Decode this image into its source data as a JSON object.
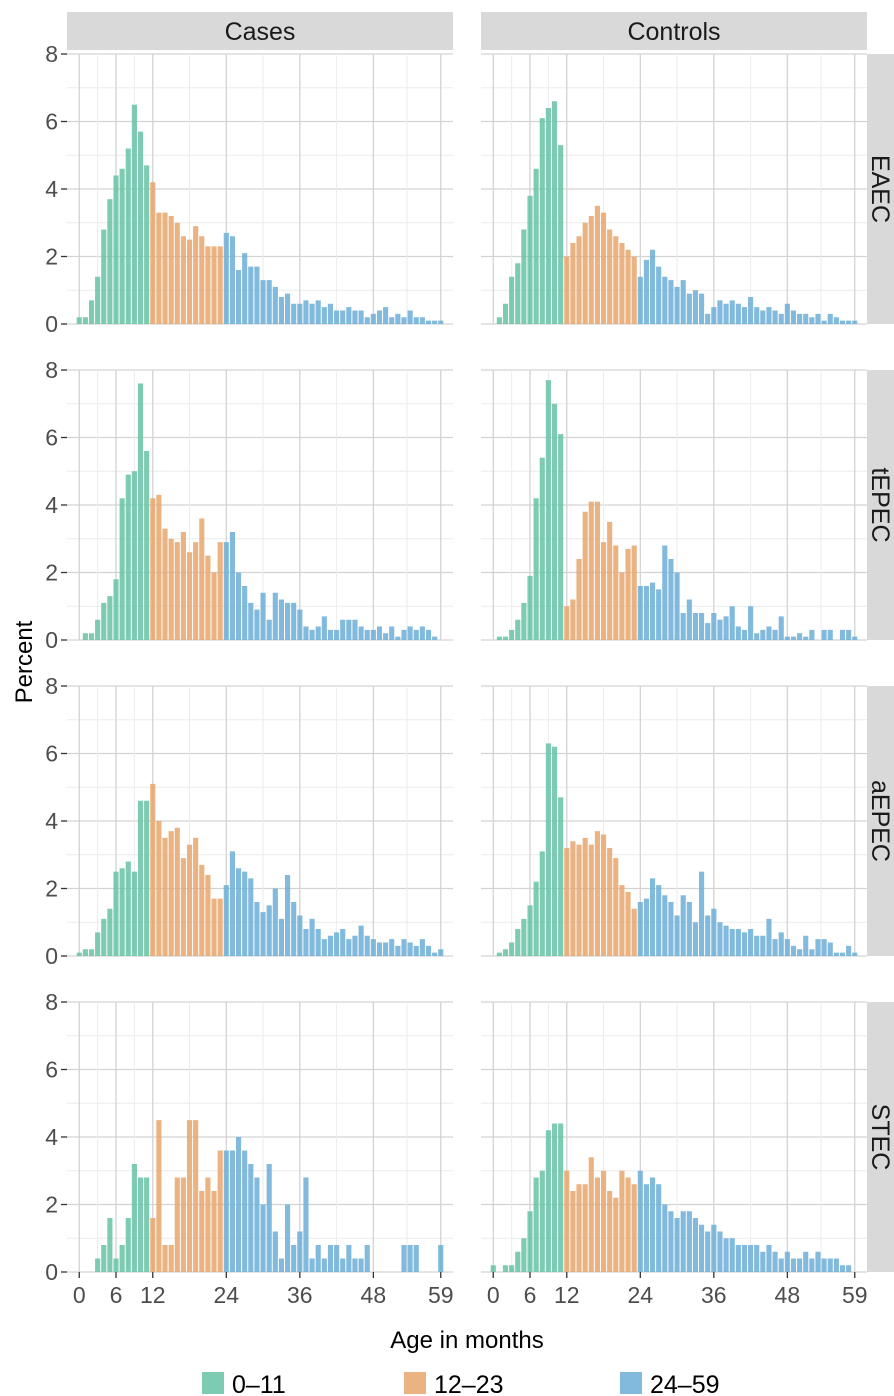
{
  "chart_data": {
    "type": "bar",
    "xlabel": "Age in months",
    "ylabel": "Percent",
    "xlim": [
      -2,
      61
    ],
    "ylim": [
      0,
      8
    ],
    "x_ticks": [
      0,
      6,
      12,
      24,
      36,
      48,
      59
    ],
    "y_ticks": [
      0,
      2,
      4,
      6,
      8
    ],
    "columns": [
      "Cases",
      "Controls"
    ],
    "rows": [
      "EAEC",
      "tEPEC",
      "aEPEC",
      "STEC"
    ],
    "legend": {
      "position": "bottom",
      "items": [
        {
          "label": "0–11",
          "color": "#66c2a5"
        },
        {
          "label": "12–23",
          "color": "#e8a46c"
        },
        {
          "label": "24–59",
          "color": "#6baed6"
        }
      ]
    },
    "group_breaks": [
      12,
      24
    ],
    "grid": true,
    "x": [
      0,
      1,
      2,
      3,
      4,
      5,
      6,
      7,
      8,
      9,
      10,
      11,
      12,
      13,
      14,
      15,
      16,
      17,
      18,
      19,
      20,
      21,
      22,
      23,
      24,
      25,
      26,
      27,
      28,
      29,
      30,
      31,
      32,
      33,
      34,
      35,
      36,
      37,
      38,
      39,
      40,
      41,
      42,
      43,
      44,
      45,
      46,
      47,
      48,
      49,
      50,
      51,
      52,
      53,
      54,
      55,
      56,
      57,
      58,
      59
    ],
    "panels": [
      {
        "row": "EAEC",
        "column": "Cases",
        "values": [
          0.2,
          0.2,
          0.7,
          1.4,
          2.8,
          3.7,
          4.4,
          4.6,
          5.2,
          6.5,
          5.7,
          4.7,
          4.2,
          3.3,
          3.3,
          3.2,
          3.0,
          2.6,
          2.5,
          2.9,
          2.6,
          2.3,
          2.3,
          2.3,
          2.7,
          2.6,
          1.6,
          2.1,
          1.7,
          1.7,
          1.3,
          1.3,
          1.1,
          0.8,
          0.9,
          0.6,
          0.6,
          0.7,
          0.6,
          0.7,
          0.5,
          0.6,
          0.4,
          0.4,
          0.5,
          0.4,
          0.4,
          0.2,
          0.3,
          0.4,
          0.5,
          0.2,
          0.3,
          0.2,
          0.4,
          0.2,
          0.2,
          0.1,
          0.1,
          0.1
        ]
      },
      {
        "row": "EAEC",
        "column": "Controls",
        "values": [
          0,
          0.2,
          0.6,
          1.4,
          1.8,
          2.8,
          3.8,
          4.6,
          6.1,
          6.4,
          6.6,
          5.3,
          2.0,
          2.4,
          2.6,
          3.0,
          3.2,
          3.5,
          3.3,
          2.8,
          2.6,
          2.4,
          2.2,
          2.0,
          1.4,
          1.9,
          2.2,
          1.7,
          1.4,
          1.3,
          1.1,
          1.3,
          0.9,
          1.0,
          0.9,
          0.3,
          0.5,
          0.7,
          0.6,
          0.7,
          0.6,
          0.5,
          0.8,
          0.5,
          0.4,
          0.5,
          0.4,
          0.3,
          0.6,
          0.4,
          0.3,
          0.3,
          0.2,
          0.3,
          0.1,
          0.3,
          0.2,
          0.1,
          0.1,
          0.1
        ]
      },
      {
        "row": "tEPEC",
        "column": "Cases",
        "values": [
          0,
          0.2,
          0.2,
          0.6,
          1.1,
          1.3,
          1.8,
          4.2,
          4.9,
          5.0,
          7.6,
          5.6,
          4.2,
          4.3,
          3.3,
          3.0,
          2.9,
          3.2,
          2.6,
          2.9,
          3.6,
          2.5,
          2.0,
          2.9,
          2.9,
          3.2,
          2.0,
          1.6,
          1.1,
          0.9,
          1.4,
          0.6,
          1.4,
          1.2,
          1.1,
          1.1,
          0.9,
          0.4,
          0.3,
          0.4,
          0.7,
          0.3,
          0.3,
          0.6,
          0.6,
          0.6,
          0.4,
          0.3,
          0.3,
          0.4,
          0.2,
          0.4,
          0.1,
          0.3,
          0.4,
          0.3,
          0.4,
          0.3,
          0.1,
          0
        ]
      },
      {
        "row": "tEPEC",
        "column": "Controls",
        "values": [
          0,
          0.1,
          0.1,
          0.3,
          0.6,
          1.1,
          1.9,
          4.2,
          5.4,
          7.7,
          7.0,
          6.1,
          1.0,
          1.2,
          2.4,
          3.8,
          4.1,
          4.1,
          2.9,
          3.5,
          2.8,
          2.0,
          2.7,
          2.8,
          1.6,
          1.6,
          1.7,
          1.5,
          2.8,
          2.4,
          2.0,
          0.8,
          1.2,
          0.8,
          0.8,
          0.5,
          0.8,
          0.6,
          0.7,
          1.0,
          0.4,
          0.3,
          1.0,
          0.2,
          0.3,
          0.4,
          0.3,
          0.7,
          0.1,
          0.1,
          0.2,
          0.1,
          0.3,
          0,
          0.3,
          0.3,
          0,
          0.3,
          0.3,
          0.1
        ]
      },
      {
        "row": "aEPEC",
        "column": "Cases",
        "values": [
          0.1,
          0.2,
          0.2,
          0.7,
          1.1,
          1.4,
          2.5,
          2.6,
          2.8,
          2.5,
          4.6,
          4.6,
          5.1,
          4.0,
          3.5,
          3.7,
          3.8,
          2.9,
          3.3,
          3.5,
          2.7,
          2.4,
          1.7,
          1.7,
          2.1,
          3.1,
          2.6,
          2.5,
          2.3,
          1.6,
          1.3,
          1.5,
          2.0,
          1.1,
          2.4,
          1.6,
          1.2,
          0.8,
          1.1,
          0.8,
          0.5,
          0.6,
          0.7,
          0.8,
          0.5,
          0.6,
          0.9,
          0.6,
          0.5,
          0.4,
          0.4,
          0.5,
          0.3,
          0.5,
          0.4,
          0.3,
          0.5,
          0.3,
          0.1,
          0.2
        ]
      },
      {
        "row": "aEPEC",
        "column": "Controls",
        "values": [
          0,
          0.1,
          0.2,
          0.4,
          0.8,
          1.1,
          1.5,
          2.2,
          3.1,
          6.3,
          6.2,
          4.7,
          3.2,
          3.4,
          3.3,
          3.5,
          3.3,
          3.7,
          3.6,
          3.2,
          2.9,
          2.1,
          1.9,
          1.4,
          1.6,
          1.7,
          2.3,
          2.1,
          1.8,
          1.6,
          1.2,
          1.8,
          1.6,
          1.0,
          2.5,
          1.2,
          1.4,
          1.0,
          0.9,
          0.8,
          0.8,
          0.7,
          0.8,
          0.6,
          0.6,
          1.1,
          0.5,
          0.7,
          0.5,
          0.3,
          0.2,
          0.6,
          0.2,
          0.5,
          0.5,
          0.4,
          0.1,
          0.1,
          0.3,
          0.1
        ]
      },
      {
        "row": "STEC",
        "column": "Cases",
        "values": [
          0,
          0,
          0,
          0.4,
          0.8,
          1.6,
          0.4,
          0.8,
          1.6,
          3.2,
          2.8,
          2.8,
          1.6,
          4.5,
          0.8,
          0.8,
          2.8,
          2.8,
          4.5,
          4.5,
          2.4,
          2.8,
          2.4,
          3.6,
          3.6,
          3.6,
          4.0,
          3.6,
          3.2,
          2.8,
          2.0,
          3.2,
          1.2,
          0.4,
          2.0,
          0.8,
          1.2,
          2.8,
          0.4,
          0.8,
          0.4,
          0.8,
          0.8,
          0.4,
          0.8,
          0.4,
          0.4,
          0.8,
          0,
          0,
          0,
          0,
          0,
          0.8,
          0.8,
          0.8,
          0,
          0,
          0,
          0.8
        ]
      },
      {
        "row": "STEC",
        "column": "Controls",
        "values": [
          0.2,
          0,
          0.2,
          0.2,
          0.6,
          1.0,
          1.8,
          2.8,
          3.0,
          4.2,
          4.4,
          4.4,
          3.0,
          2.4,
          2.6,
          2.6,
          3.4,
          2.8,
          3.0,
          2.4,
          2.2,
          3.0,
          2.8,
          2.6,
          3.0,
          2.6,
          2.8,
          2.6,
          2.0,
          1.8,
          1.6,
          1.8,
          1.8,
          1.6,
          1.4,
          1.2,
          1.4,
          1.2,
          1.0,
          1.0,
          0.8,
          0.8,
          0.8,
          0.8,
          0.6,
          0.8,
          0.6,
          0.4,
          0.6,
          0.4,
          0.4,
          0.6,
          0.4,
          0.6,
          0.4,
          0.4,
          0.4,
          0.2,
          0.2,
          0
        ]
      }
    ]
  }
}
